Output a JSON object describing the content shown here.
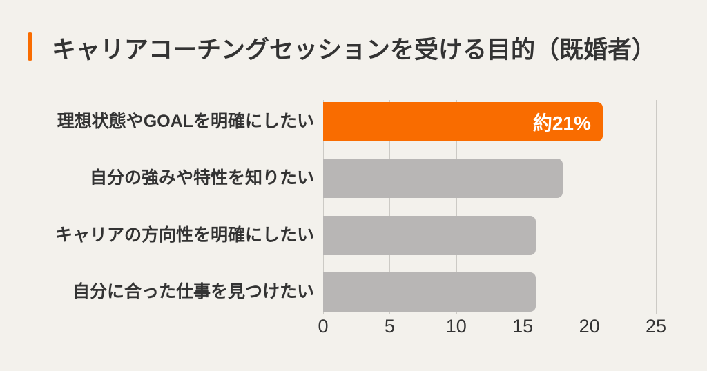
{
  "header": {
    "title": "キャリアコーチングセッションを受ける目的（既婚者）"
  },
  "colors": {
    "background": "#F3F1EC",
    "accent_orange": "#F96C00",
    "bar_gray": "#B8B6B5",
    "gridline": "#CCCAC5",
    "text": "#333333",
    "value_label": "#FFFFFF"
  },
  "chart_data": {
    "type": "bar",
    "orientation": "horizontal",
    "title": "キャリアコーチングセッションを受ける目的（既婚者）",
    "categories": [
      "理想状態やGOALを明確にしたい",
      "自分の強みや特性を知りたい",
      "キャリアの方向性を明確にしたい",
      "自分に合った仕事を見つけたい"
    ],
    "values": [
      21,
      18,
      16,
      16
    ],
    "value_labels": [
      "約21%",
      "",
      "",
      ""
    ],
    "bar_colors": [
      "#F96C00",
      "#B8B6B5",
      "#B8B6B5",
      "#B8B6B5"
    ],
    "highlight_index": 0,
    "xlabel": "",
    "ylabel": "",
    "xlim": [
      0,
      25
    ],
    "xticks": [
      0,
      5,
      10,
      15,
      20,
      25
    ],
    "grid": "vertical",
    "legend": "none"
  }
}
